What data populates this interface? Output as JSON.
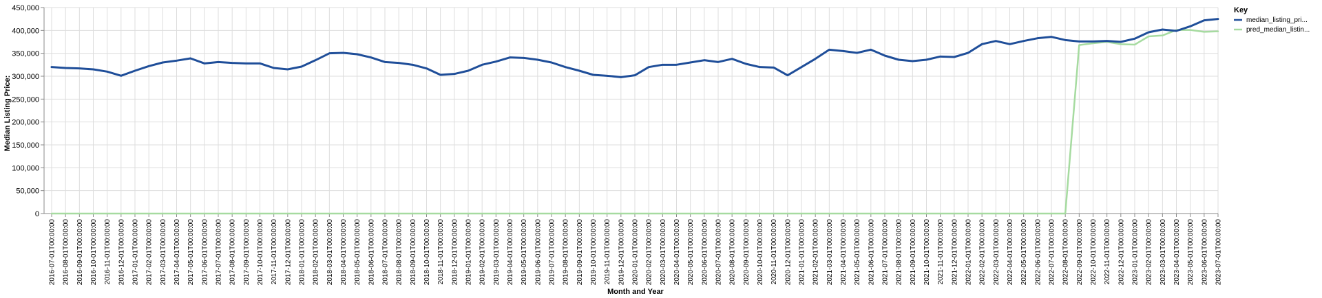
{
  "chart_data": {
    "type": "line",
    "xlabel": "Month and Year",
    "ylabel": "Median Listing Price:",
    "ylim": [
      0,
      450000
    ],
    "yticks": [
      "0",
      "50,000",
      "100,000",
      "150,000",
      "200,000",
      "250,000",
      "300,000",
      "350,000",
      "400,000",
      "450,000"
    ],
    "grid": true,
    "legend_position": "right",
    "legend_title": "Key",
    "colors": {
      "median_listing_price": "#1f4e99",
      "pred_median_listing_price": "#a6dba0"
    },
    "x": [
      "2016-07-01T00:00:00",
      "2016-08-01T00:00:00",
      "2016-09-01T00:00:00",
      "2016-10-01T00:00:00",
      "2016-11-01T00:00:00",
      "2016-12-01T00:00:00",
      "2017-01-01T00:00:00",
      "2017-02-01T00:00:00",
      "2017-03-01T00:00:00",
      "2017-04-01T00:00:00",
      "2017-05-01T00:00:00",
      "2017-06-01T00:00:00",
      "2017-07-01T00:00:00",
      "2017-08-01T00:00:00",
      "2017-09-01T00:00:00",
      "2017-10-01T00:00:00",
      "2017-11-01T00:00:00",
      "2017-12-01T00:00:00",
      "2018-01-01T00:00:00",
      "2018-02-01T00:00:00",
      "2018-03-01T00:00:00",
      "2018-04-01T00:00:00",
      "2018-05-01T00:00:00",
      "2018-06-01T00:00:00",
      "2018-07-01T00:00:00",
      "2018-08-01T00:00:00",
      "2018-09-01T00:00:00",
      "2018-10-01T00:00:00",
      "2018-11-01T00:00:00",
      "2018-12-01T00:00:00",
      "2019-01-01T00:00:00",
      "2019-02-01T00:00:00",
      "2019-03-01T00:00:00",
      "2019-04-01T00:00:00",
      "2019-05-01T00:00:00",
      "2019-06-01T00:00:00",
      "2019-07-01T00:00:00",
      "2019-08-01T00:00:00",
      "2019-09-01T00:00:00",
      "2019-10-01T00:00:00",
      "2019-11-01T00:00:00",
      "2019-12-01T00:00:00",
      "2020-01-01T00:00:00",
      "2020-02-01T00:00:00",
      "2020-03-01T00:00:00",
      "2020-04-01T00:00:00",
      "2020-05-01T00:00:00",
      "2020-06-01T00:00:00",
      "2020-07-01T00:00:00",
      "2020-08-01T00:00:00",
      "2020-09-01T00:00:00",
      "2020-10-01T00:00:00",
      "2020-11-01T00:00:00",
      "2020-12-01T00:00:00",
      "2021-01-01T00:00:00",
      "2021-02-01T00:00:00",
      "2021-03-01T00:00:00",
      "2021-04-01T00:00:00",
      "2021-05-01T00:00:00",
      "2021-06-01T00:00:00",
      "2021-07-01T00:00:00",
      "2021-08-01T00:00:00",
      "2021-09-01T00:00:00",
      "2021-10-01T00:00:00",
      "2021-11-01T00:00:00",
      "2021-12-01T00:00:00",
      "2022-01-01T00:00:00",
      "2022-02-01T00:00:00",
      "2022-03-01T00:00:00",
      "2022-04-01T00:00:00",
      "2022-05-01T00:00:00",
      "2022-06-01T00:00:00",
      "2022-07-01T00:00:00",
      "2022-08-01T00:00:00",
      "2022-09-01T00:00:00",
      "2022-10-01T00:00:00",
      "2022-11-01T00:00:00",
      "2022-12-01T00:00:00",
      "2023-01-01T00:00:00",
      "2023-02-01T00:00:00",
      "2023-03-01T00:00:00",
      "2023-04-01T00:00:00",
      "2023-05-01T00:00:00",
      "2023-06-01T00:00:00",
      "2023-07-01T00:00:00"
    ],
    "series": [
      {
        "name": "median_listing_pri...",
        "values": [
          320000,
          318000,
          317000,
          315000,
          310000,
          301000,
          312000,
          322000,
          330000,
          334000,
          339000,
          328000,
          331000,
          329000,
          328000,
          328000,
          318000,
          315000,
          321000,
          335000,
          350000,
          351000,
          348000,
          341000,
          331000,
          329000,
          325000,
          317000,
          303000,
          305000,
          312000,
          325000,
          332000,
          341000,
          340000,
          336000,
          330000,
          320000,
          312000,
          303000,
          301000,
          298000,
          302000,
          320000,
          325000,
          325000,
          330000,
          335000,
          331000,
          338000,
          327000,
          320000,
          319000,
          302000,
          320000,
          338000,
          358000,
          355000,
          351000,
          358000,
          345000,
          336000,
          333000,
          336000,
          343000,
          342000,
          351000,
          370000,
          377000,
          370000,
          377000,
          383000,
          386000,
          379000,
          376000,
          376000,
          377000,
          375000,
          382000,
          396000,
          402000,
          399000,
          409000,
          422000,
          425000
        ]
      },
      {
        "name": "pred_median_listin...",
        "values": [
          0,
          0,
          0,
          0,
          0,
          0,
          0,
          0,
          0,
          0,
          0,
          0,
          0,
          0,
          0,
          0,
          0,
          0,
          0,
          0,
          0,
          0,
          0,
          0,
          0,
          0,
          0,
          0,
          0,
          0,
          0,
          0,
          0,
          0,
          0,
          0,
          0,
          0,
          0,
          0,
          0,
          0,
          0,
          0,
          0,
          0,
          0,
          0,
          0,
          0,
          0,
          0,
          0,
          0,
          0,
          0,
          0,
          0,
          0,
          0,
          0,
          0,
          0,
          0,
          0,
          0,
          0,
          0,
          0,
          0,
          0,
          0,
          0,
          0,
          368000,
          372000,
          375000,
          370000,
          369000,
          387000,
          389000,
          401000,
          401000,
          397000,
          398000
        ]
      }
    ]
  }
}
